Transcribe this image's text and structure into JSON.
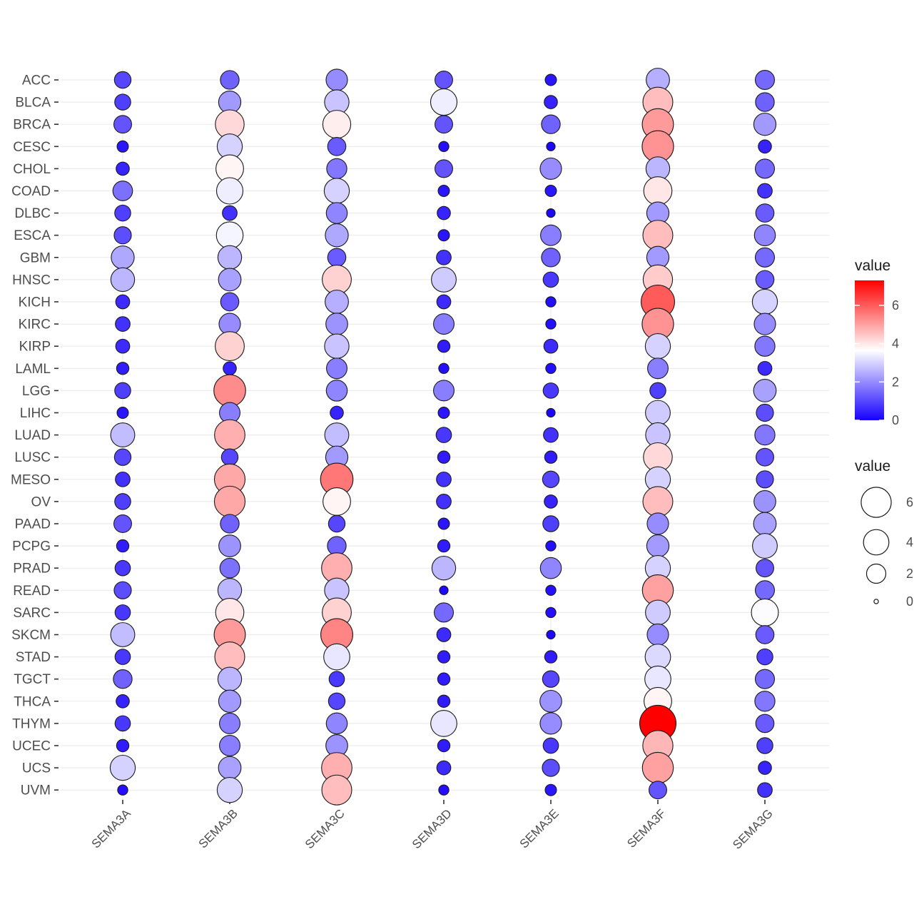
{
  "chart_data": {
    "type": "bubble-heatmap",
    "x_categories": [
      "SEMA3A",
      "SEMA3B",
      "SEMA3C",
      "SEMA3D",
      "SEMA3E",
      "SEMA3F",
      "SEMA3G"
    ],
    "y_categories": [
      "ACC",
      "BLCA",
      "BRCA",
      "CESC",
      "CHOL",
      "COAD",
      "DLBC",
      "ESCA",
      "GBM",
      "HNSC",
      "KICH",
      "KIRC",
      "KIRP",
      "LAML",
      "LGG",
      "LIHC",
      "LUAD",
      "LUSC",
      "MESO",
      "OV",
      "PAAD",
      "PCPG",
      "PRAD",
      "READ",
      "SARC",
      "SKCM",
      "STAD",
      "TGCT",
      "THCA",
      "THYM",
      "UCEC",
      "UCS",
      "UVM"
    ],
    "values": [
      [
        1.0,
        1.4,
        2.0,
        1.2,
        0.3,
        2.5,
        1.5
      ],
      [
        0.9,
        2.2,
        2.8,
        3.4,
        0.5,
        4.6,
        1.4
      ],
      [
        1.2,
        4.2,
        3.9,
        1.2,
        1.4,
        5.1,
        2.2
      ],
      [
        0.3,
        3.0,
        1.3,
        0.2,
        0.1,
        5.2,
        0.5
      ],
      [
        0.5,
        3.8,
        1.7,
        1.2,
        2.0,
        2.6,
        1.5
      ],
      [
        1.6,
        3.4,
        3.0,
        0.3,
        0.3,
        4.0,
        0.7
      ],
      [
        0.9,
        0.7,
        1.9,
        0.5,
        0.1,
        2.2,
        1.3
      ],
      [
        1.1,
        3.5,
        2.4,
        0.3,
        1.8,
        4.6,
        1.9
      ],
      [
        2.4,
        2.6,
        1.3,
        0.7,
        1.4,
        2.2,
        1.5
      ],
      [
        2.6,
        2.3,
        4.3,
        2.9,
        0.8,
        4.4,
        1.3
      ],
      [
        0.6,
        1.3,
        2.5,
        0.6,
        0.2,
        6.0,
        3.0
      ],
      [
        0.7,
        2.0,
        2.1,
        1.8,
        0.2,
        5.2,
        2.0
      ],
      [
        0.6,
        4.3,
        2.8,
        0.4,
        0.6,
        3.0,
        1.7
      ],
      [
        0.4,
        0.5,
        1.8,
        0.2,
        0.2,
        1.8,
        0.6
      ],
      [
        0.9,
        5.3,
        1.9,
        1.8,
        0.8,
        0.9,
        2.3
      ],
      [
        0.3,
        1.8,
        0.5,
        0.3,
        0.1,
        2.9,
        1.1
      ],
      [
        2.7,
        4.8,
        2.7,
        0.8,
        0.7,
        2.8,
        1.7
      ],
      [
        1.0,
        1.0,
        2.2,
        0.4,
        0.4,
        4.2,
        1.2
      ],
      [
        0.7,
        4.9,
        5.6,
        0.7,
        1.0,
        3.0,
        1.1
      ],
      [
        0.9,
        4.9,
        3.8,
        0.7,
        0.5,
        4.6,
        2.1
      ],
      [
        1.2,
        1.4,
        1.0,
        0.3,
        0.9,
        2.0,
        2.3
      ],
      [
        0.4,
        2.1,
        1.4,
        0.4,
        0.2,
        2.2,
        2.9
      ],
      [
        0.8,
        1.6,
        4.8,
        2.6,
        1.9,
        3.0,
        1.2
      ],
      [
        1.1,
        2.6,
        2.8,
        0.1,
        0.2,
        5.0,
        1.5
      ],
      [
        0.8,
        4.0,
        4.3,
        1.5,
        0.2,
        2.9,
        3.6
      ],
      [
        2.7,
        5.1,
        5.4,
        0.6,
        0.1,
        2.0,
        1.3
      ],
      [
        0.8,
        4.6,
        3.3,
        0.4,
        0.4,
        3.1,
        0.9
      ],
      [
        1.4,
        2.6,
        0.8,
        0.4,
        1.0,
        3.3,
        1.5
      ],
      [
        0.5,
        2.2,
        1.0,
        0.4,
        2.1,
        3.8,
        1.7
      ],
      [
        0.8,
        1.8,
        1.9,
        3.3,
        2.0,
        7.3,
        1.3
      ],
      [
        0.4,
        1.8,
        2.1,
        0.4,
        0.8,
        4.7,
        0.9
      ],
      [
        3.0,
        2.3,
        4.8,
        0.6,
        1.1,
        5.0,
        0.5
      ],
      [
        0.2,
        3.0,
        4.6,
        0.2,
        0.3,
        1.2,
        0.7
      ]
    ],
    "color_legend": {
      "title": "value",
      "ticks": [
        "6",
        "4",
        "2",
        "0"
      ],
      "tick_values": [
        6,
        4,
        2,
        0
      ],
      "range": [
        0,
        7.3
      ],
      "low": "#1600ff",
      "mid": "#ffffff",
      "high": "#ff0000",
      "mid_value": 3.65
    },
    "size_legend": {
      "title": "value",
      "ticks": [
        "6",
        "4",
        "2",
        "0"
      ],
      "tick_values": [
        6,
        4,
        2,
        0
      ]
    },
    "grid": true,
    "legend_position": "right"
  }
}
